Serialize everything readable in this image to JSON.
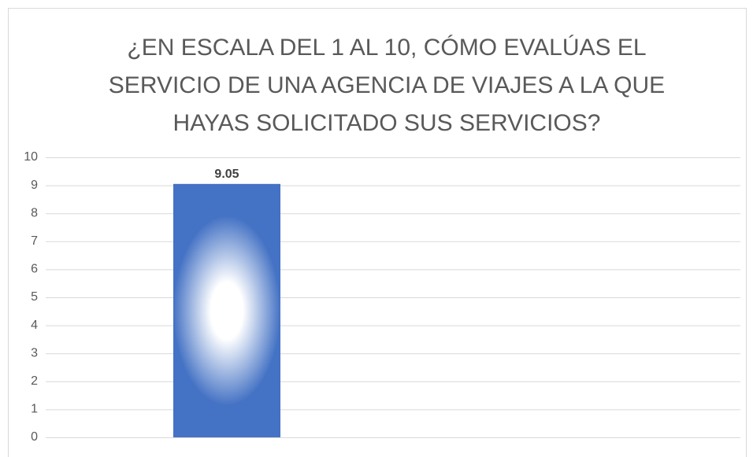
{
  "chart_data": {
    "type": "bar",
    "title": [
      "¿EN ESCALA DEL 1 AL 10, CÓMO EVALÚAS EL",
      "SERVICIO DE UNA AGENCIA DE VIAJES A LA QUE",
      "HAYAS SOLICITADO SUS SERVICIOS?"
    ],
    "categories": [
      null
    ],
    "values": [
      9.05
    ],
    "color": "#4472c4",
    "ylim": [
      0,
      10
    ],
    "yticks": [
      0,
      1,
      2,
      3,
      4,
      5,
      6,
      7,
      8,
      9,
      10
    ],
    "grid": true
  }
}
